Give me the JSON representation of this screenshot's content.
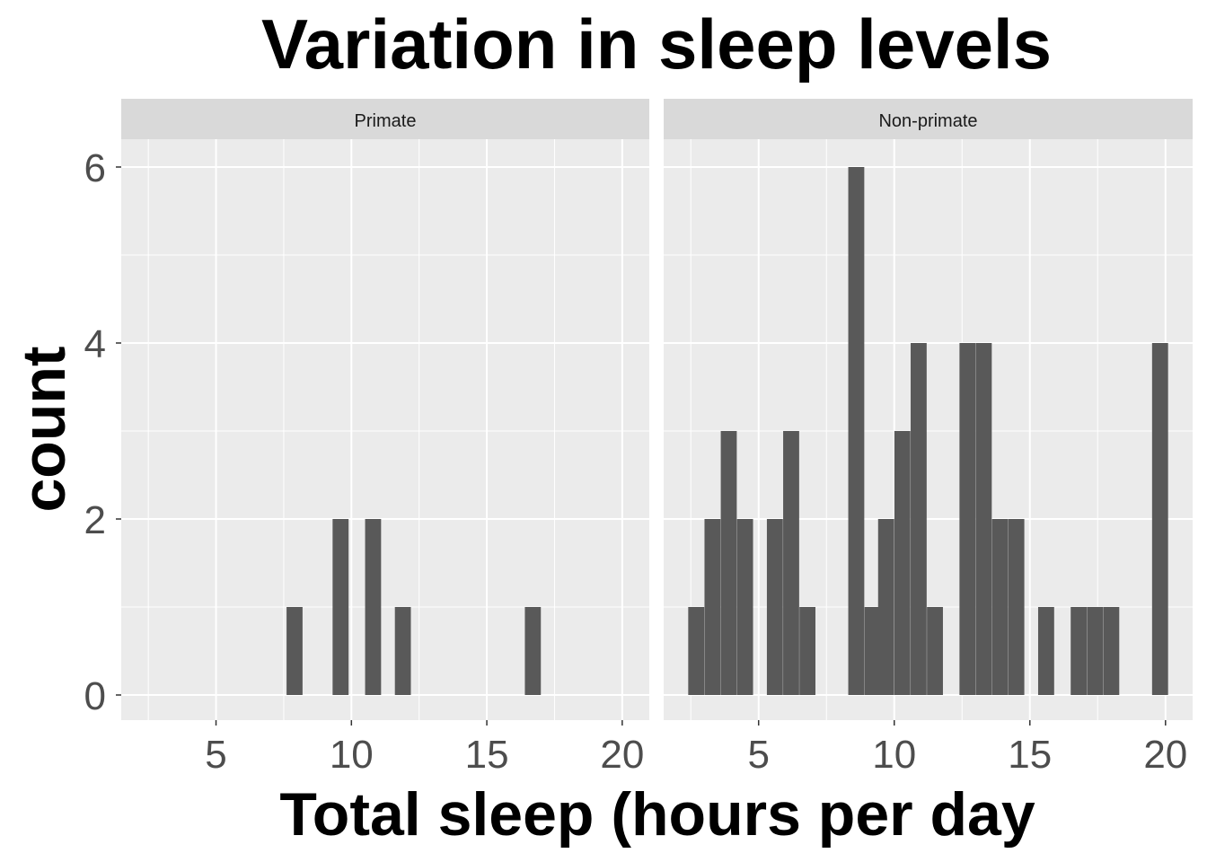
{
  "chart_data": {
    "type": "bar",
    "title": "Variation in sleep levels",
    "xlabel": "Total sleep (hours per day",
    "ylabel": "count",
    "xlim": [
      1.5,
      21
    ],
    "ylim": [
      0,
      6.3
    ],
    "x_ticks": [
      5,
      10,
      15,
      20
    ],
    "y_ticks": [
      0,
      2,
      4,
      6
    ],
    "bin_width": 0.59,
    "grid": true,
    "bar_color": "#595959",
    "panel_background": "#ebebeb",
    "strip_background": "#d9d9d9",
    "facets": [
      {
        "strip": "Primate",
        "bins": [
          {
            "x": 7.9,
            "count": 1
          },
          {
            "x": 9.6,
            "count": 2
          },
          {
            "x": 10.8,
            "count": 2
          },
          {
            "x": 11.9,
            "count": 1
          },
          {
            "x": 16.7,
            "count": 1
          }
        ]
      },
      {
        "strip": "Non-primate",
        "bins": [
          {
            "x": 2.7,
            "count": 1
          },
          {
            "x": 3.3,
            "count": 2
          },
          {
            "x": 3.9,
            "count": 3
          },
          {
            "x": 4.5,
            "count": 2
          },
          {
            "x": 5.6,
            "count": 2
          },
          {
            "x": 6.2,
            "count": 3
          },
          {
            "x": 6.8,
            "count": 1
          },
          {
            "x": 8.6,
            "count": 6
          },
          {
            "x": 9.2,
            "count": 1
          },
          {
            "x": 9.7,
            "count": 2
          },
          {
            "x": 10.3,
            "count": 3
          },
          {
            "x": 10.9,
            "count": 4
          },
          {
            "x": 11.5,
            "count": 1
          },
          {
            "x": 12.7,
            "count": 4
          },
          {
            "x": 13.3,
            "count": 4
          },
          {
            "x": 13.9,
            "count": 2
          },
          {
            "x": 14.5,
            "count": 2
          },
          {
            "x": 15.6,
            "count": 1
          },
          {
            "x": 16.8,
            "count": 1
          },
          {
            "x": 17.4,
            "count": 1
          },
          {
            "x": 18.0,
            "count": 1
          },
          {
            "x": 19.8,
            "count": 4
          }
        ]
      }
    ]
  }
}
